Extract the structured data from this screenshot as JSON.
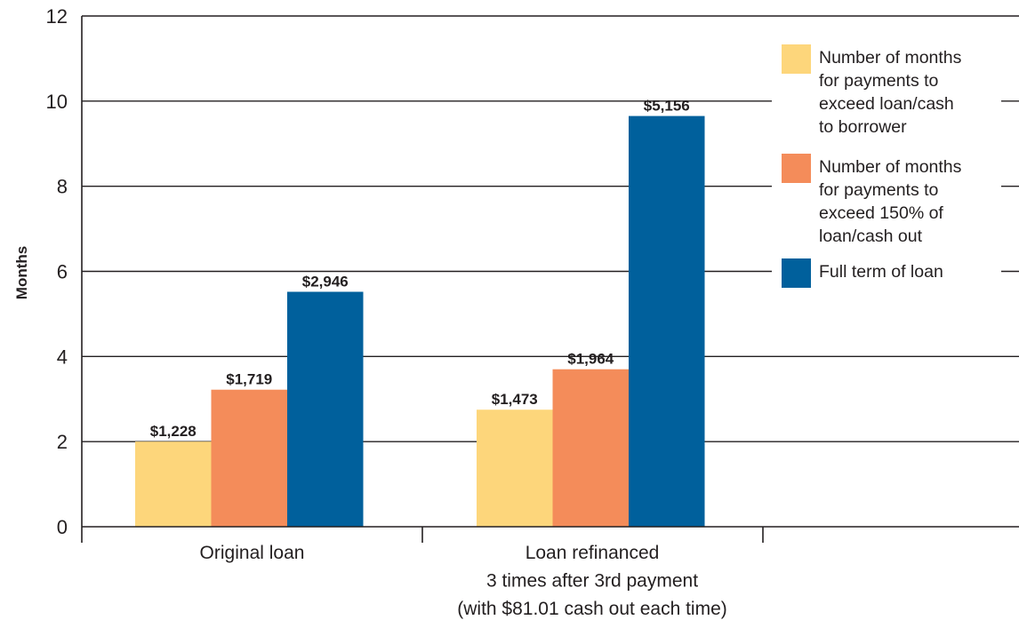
{
  "chart_data": {
    "type": "bar",
    "ylabel": "Months",
    "ylim": [
      0,
      12
    ],
    "yticks": [
      "0",
      "2",
      "4",
      "6",
      "8",
      "10",
      "12"
    ],
    "categories": [
      [
        "Original loan"
      ],
      [
        "Loan refinanced",
        "3 times after 3rd payment",
        "(with $81.01 cash out each time)"
      ]
    ],
    "series": [
      {
        "name": [
          "Number of months",
          "for payments to",
          "exceed loan/cash",
          "to borrower"
        ],
        "color": "#fdd67b",
        "values": [
          2.0,
          2.75
        ],
        "labels": [
          "$1,228",
          "$1,473"
        ]
      },
      {
        "name": [
          "Number of months",
          "for payments to",
          "exceed 150% of",
          "loan/cash out"
        ],
        "color": "#f48c5a",
        "values": [
          3.22,
          3.7
        ],
        "labels": [
          "$1,719",
          "$1,964"
        ]
      },
      {
        "name": [
          "Full term of loan"
        ],
        "color": "#00609c",
        "values": [
          5.52,
          9.65
        ],
        "labels": [
          "$2,946",
          "$5,156"
        ]
      }
    ],
    "grid": true,
    "legend_position": "top-right"
  }
}
